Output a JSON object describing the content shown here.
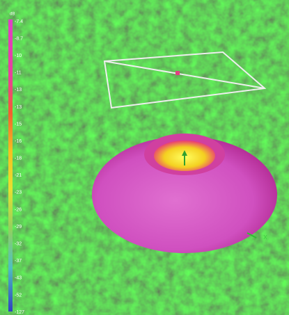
{
  "colorbar": {
    "unit": "dB",
    "labels": [
      "-7.4",
      "-8.7",
      "-10",
      "-11",
      "-13",
      "-13",
      "-15",
      "-16",
      "-18",
      "-21",
      "-23",
      "-26",
      "-29",
      "-32",
      "-37",
      "-43",
      "-52",
      "-127"
    ]
  },
  "axes": {
    "x": "x"
  }
}
